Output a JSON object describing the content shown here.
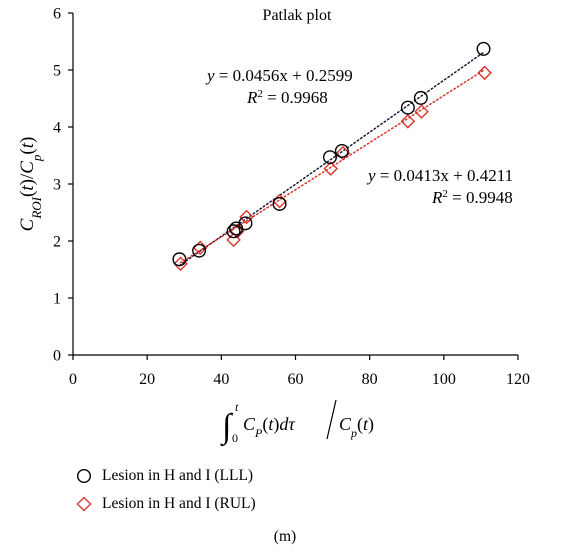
{
  "chart_data": {
    "type": "scatter",
    "title": "Patlak plot",
    "xlim": [
      0,
      120
    ],
    "ylim": [
      0,
      6
    ],
    "x_ticks": [
      "0",
      "20",
      "40",
      "60",
      "80",
      "100",
      "120"
    ],
    "y_ticks": [
      "0",
      "1",
      "2",
      "3",
      "4",
      "5",
      "6"
    ],
    "xlabel": "∫0t CP(t)dτ / Cp(t)",
    "ylabel": "CROI(t)/Cp(t)",
    "grid": false,
    "legend_position": "bottom",
    "series": [
      {
        "name": "Lesion in H and I (LLL)",
        "marker": "circle",
        "color": "#000000",
        "points": [
          [
            28.7,
            1.68
          ],
          [
            34.0,
            1.83
          ],
          [
            43.3,
            2.17
          ],
          [
            44.0,
            2.22
          ],
          [
            46.5,
            2.31
          ],
          [
            55.7,
            2.65
          ],
          [
            69.3,
            3.47
          ],
          [
            72.5,
            3.58
          ],
          [
            90.3,
            4.34
          ],
          [
            93.8,
            4.51
          ],
          [
            110.7,
            5.37
          ]
        ],
        "trendline": {
          "slope": 0.0456,
          "intercept": 0.2599,
          "equation": "y = 0.0456x + 0.2599",
          "r2": "R2 = 0.9968",
          "color": "#1a1a3a"
        }
      },
      {
        "name": "Lesion in H and I (RUL)",
        "marker": "diamond",
        "color": "#d9342b",
        "points": [
          [
            29.0,
            1.6
          ],
          [
            34.3,
            1.88
          ],
          [
            43.3,
            2.02
          ],
          [
            44.3,
            2.17
          ],
          [
            46.8,
            2.42
          ],
          [
            55.7,
            2.7
          ],
          [
            69.5,
            3.27
          ],
          [
            72.8,
            3.54
          ],
          [
            90.3,
            4.1
          ],
          [
            94.0,
            4.27
          ],
          [
            111.0,
            4.95
          ]
        ],
        "trendline": {
          "slope": 0.0413,
          "intercept": 0.4211,
          "equation": "y = 0.0413x + 0.4211",
          "r2": "R2 = 0.9948",
          "color": "#d9342b"
        }
      }
    ]
  },
  "caption": "(m)"
}
